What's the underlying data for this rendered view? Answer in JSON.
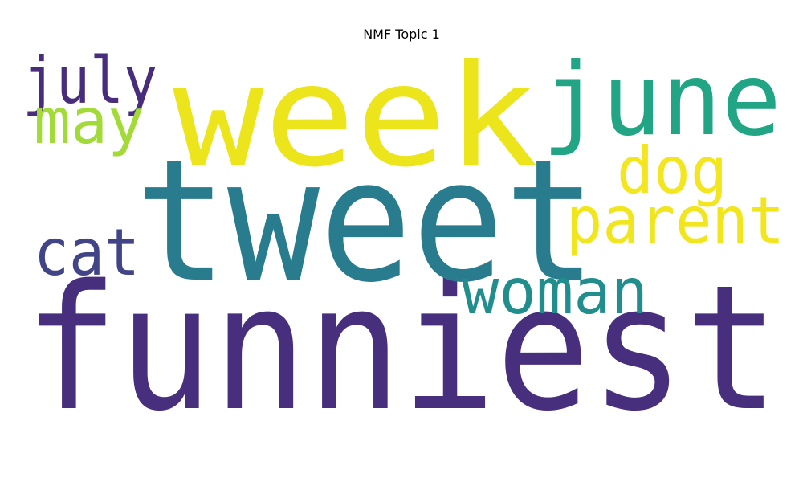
{
  "chart_data": {
    "type": "wordcloud",
    "title": "NMF Topic 1",
    "words": [
      {
        "text": "funniest",
        "color": "#472f7d"
      },
      {
        "text": "tweet",
        "color": "#287c8e"
      },
      {
        "text": "week",
        "color": "#ece51b"
      },
      {
        "text": "june",
        "color": "#21a585"
      },
      {
        "text": "parent",
        "color": "#f1e51d"
      },
      {
        "text": "woman",
        "color": "#218e8d"
      },
      {
        "text": "july",
        "color": "#472d7b"
      },
      {
        "text": "cat",
        "color": "#414487"
      },
      {
        "text": "dog",
        "color": "#f4e61e"
      },
      {
        "text": "may",
        "color": "#a2da37"
      }
    ]
  }
}
